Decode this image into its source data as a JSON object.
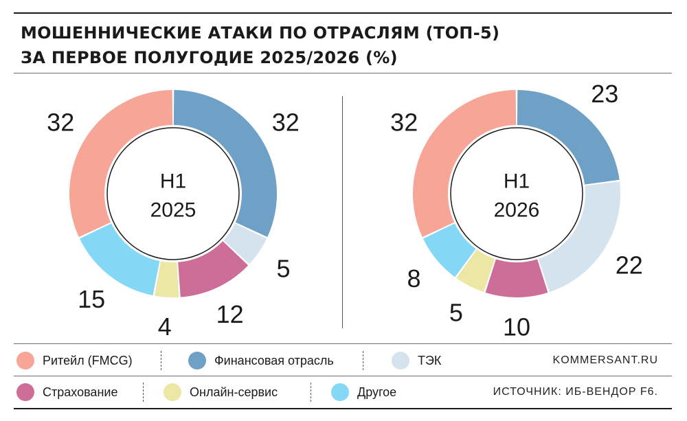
{
  "title": {
    "line1": "Мошеннические атаки по отраслям (топ-5)",
    "line2": "за первое полугодие 2025/2026 (%)"
  },
  "chart_data": [
    {
      "type": "pie",
      "center_label": [
        "H1",
        "2025"
      ],
      "slices": [
        {
          "category": "Финансовая отрасль",
          "value": 32,
          "label": "32"
        },
        {
          "category": "ТЭК",
          "value": 5,
          "label": "5"
        },
        {
          "category": "Страхование",
          "value": 12,
          "label": "12"
        },
        {
          "category": "Онлайн-сервис",
          "value": 4,
          "label": "4"
        },
        {
          "category": "Другое",
          "value": 15,
          "label": "15"
        },
        {
          "category": "Ритейл (FMCG)",
          "value": 32,
          "label": "32"
        }
      ]
    },
    {
      "type": "pie",
      "center_label": [
        "H1",
        "2026"
      ],
      "slices": [
        {
          "category": "Финансовая отрасль",
          "value": 23,
          "label": "23"
        },
        {
          "category": "ТЭК",
          "value": 22,
          "label": "22"
        },
        {
          "category": "Страхование",
          "value": 10,
          "label": "10"
        },
        {
          "category": "Онлайн-сервис",
          "value": 5,
          "label": "5"
        },
        {
          "category": "Другое",
          "value": 8,
          "label": "8"
        },
        {
          "category": "Ритейл (FMCG)",
          "value": 32,
          "label": "32"
        }
      ]
    }
  ],
  "legend": {
    "row1": [
      {
        "label": "Ритейл (FMCG)",
        "color": "#f6a597"
      },
      {
        "label": "Финансовая отрасль",
        "color": "#6fa0c6"
      },
      {
        "label": "ТЭК",
        "color": "#d5e3ef"
      }
    ],
    "row2": [
      {
        "label": "Страхование",
        "color": "#cc6e97"
      },
      {
        "label": "Онлайн-сервис",
        "color": "#ede7a5"
      },
      {
        "label": "Другое",
        "color": "#84d8f6"
      }
    ]
  },
  "colors": {
    "Ритейл (FMCG)": "#f6a597",
    "Финансовая отрасль": "#6fa0c6",
    "ТЭК": "#d5e3ef",
    "Страхование": "#cc6e97",
    "Онлайн-сервис": "#ede7a5",
    "Другое": "#84d8f6"
  },
  "site": "KOMMERSANT.RU",
  "source": "ИСТОЧНИК: ИБ-ВЕНДОР F6."
}
